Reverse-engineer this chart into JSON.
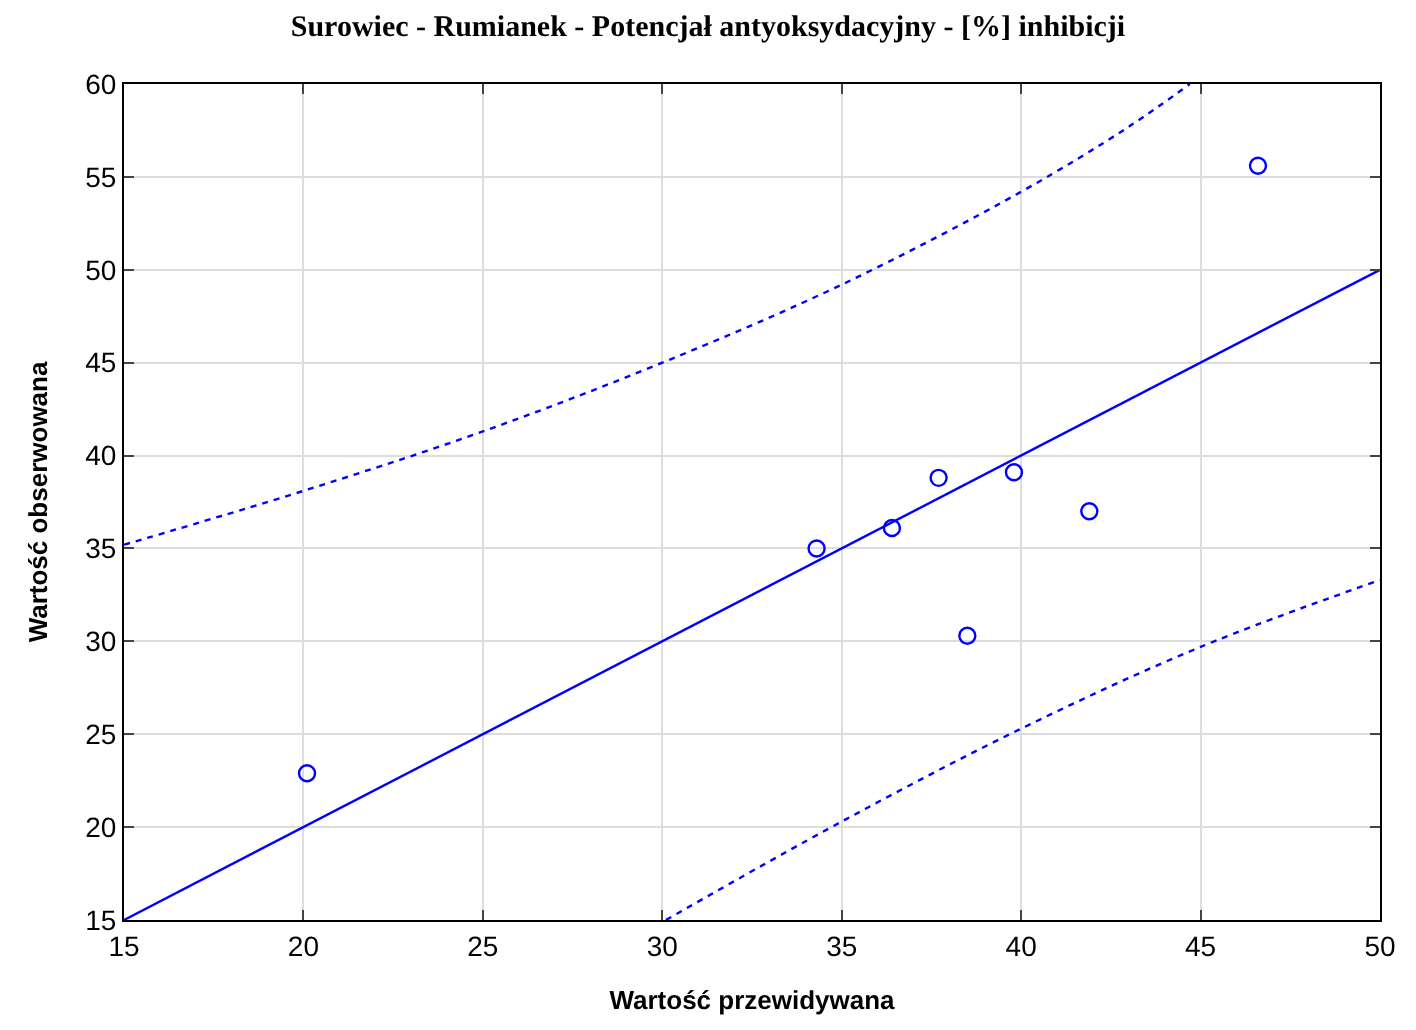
{
  "chart_data": {
    "type": "scatter",
    "title": "Surowiec - Rumianek - Potencjał antyoksydacyjny - [%] inhibicji",
    "xlabel": "Wartość przewidywana",
    "ylabel": "Wartość obserwowana",
    "xlim": [
      15,
      50
    ],
    "xticks": [
      15,
      20,
      25,
      30,
      35,
      40,
      45,
      50
    ],
    "ylim": [
      15,
      60
    ],
    "yticks": [
      15,
      20,
      25,
      30,
      35,
      40,
      45,
      50,
      55,
      60
    ],
    "grid": true,
    "series": [
      {
        "marker": "circle",
        "color": "#0000ff",
        "x": [
          20.1,
          34.3,
          36.4,
          37.7,
          38.5,
          39.8,
          41.9,
          46.6
        ],
        "values": [
          22.9,
          35.0,
          36.1,
          38.8,
          30.3,
          39.1,
          37.0,
          55.6
        ]
      },
      {
        "type": "line",
        "marker": "none",
        "line_style": "solid",
        "color": "#0000ff",
        "x": [
          15,
          50
        ],
        "values": [
          15,
          50
        ]
      },
      {
        "type": "line",
        "marker": "none",
        "line_style": "dotted",
        "color": "#0000ff",
        "x": [
          15,
          20,
          25,
          30,
          35,
          40,
          43,
          44.7
        ],
        "values": [
          35.2,
          38.1,
          41.3,
          45.0,
          49.2,
          54.2,
          57.7,
          60
        ]
      },
      {
        "type": "line",
        "marker": "none",
        "line_style": "dotted",
        "color": "#0000ff",
        "x": [
          30.1,
          35,
          40,
          45,
          50
        ],
        "values": [
          15,
          20.3,
          25.3,
          29.7,
          33.3
        ]
      }
    ]
  }
}
